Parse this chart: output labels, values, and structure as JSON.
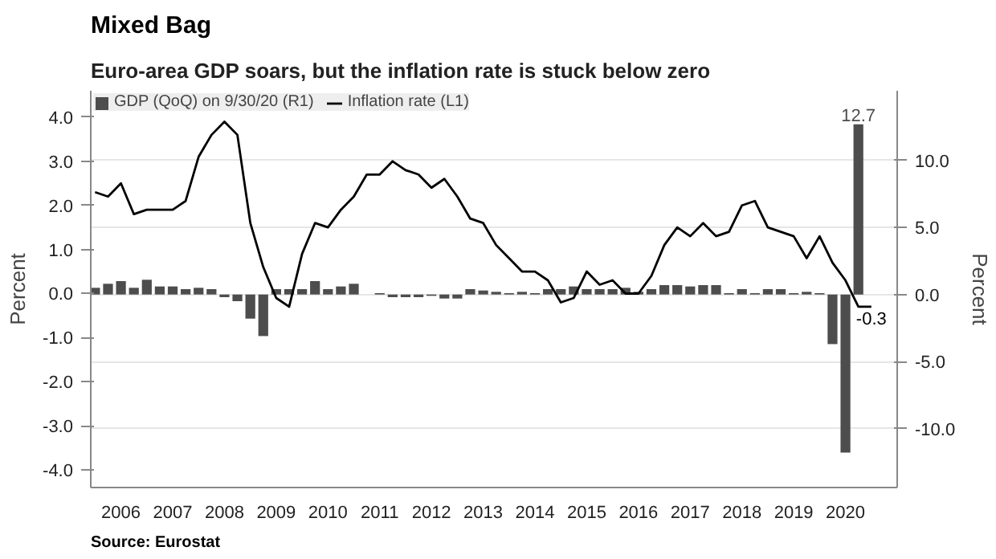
{
  "chart_data": {
    "type": "bar",
    "title": "Mixed Bag",
    "subtitle": "Euro-area GDP soars, but the inflation rate is stuck below zero",
    "ylabel": "Percent",
    "y2label": "Percent",
    "annotations": [
      "Source: Eurostat"
    ],
    "xlim": [
      "2005-11",
      "2021-06"
    ],
    "xticks": [
      {
        "value": "2006-06",
        "label": "2006"
      },
      {
        "value": "2007-06",
        "label": "2007"
      },
      {
        "value": "2008-06",
        "label": "2008"
      },
      {
        "value": "2009-06",
        "label": "2009"
      },
      {
        "value": "2010-06",
        "label": "2010"
      },
      {
        "value": "2011-06",
        "label": "2011"
      },
      {
        "value": "2012-06",
        "label": "2012"
      },
      {
        "value": "2013-06",
        "label": "2013"
      },
      {
        "value": "2014-06",
        "label": "2014"
      },
      {
        "value": "2015-06",
        "label": "2015"
      },
      {
        "value": "2016-06",
        "label": "2016"
      },
      {
        "value": "2017-06",
        "label": "2017"
      },
      {
        "value": "2018-06",
        "label": "2018"
      },
      {
        "value": "2019-06",
        "label": "2019"
      },
      {
        "value": "2020-06",
        "label": "2020"
      }
    ],
    "ylim": [
      -4.4,
      4.6
    ],
    "yticks": [
      {
        "value": -4,
        "label": "-4.0"
      },
      {
        "value": -3,
        "label": "-3.0"
      },
      {
        "value": -2,
        "label": "-2.0"
      },
      {
        "value": -1,
        "label": "-1.0"
      },
      {
        "value": 0,
        "label": "0.0"
      },
      {
        "value": 1,
        "label": "1.0"
      },
      {
        "value": 2,
        "label": "2.0"
      },
      {
        "value": 3,
        "label": "3.0"
      },
      {
        "value": 4,
        "label": "4.0"
      }
    ],
    "y2lim": [
      -14.4,
      15.2
    ],
    "y2ticks": [
      {
        "value": -10,
        "label": "-10.0"
      },
      {
        "value": -5,
        "label": "-5.0"
      },
      {
        "value": 0,
        "label": "0.0"
      },
      {
        "value": 5,
        "label": "5.0"
      },
      {
        "value": 10,
        "label": "10.0"
      }
    ],
    "grid": "y",
    "legend": "top left",
    "series": [
      {
        "name": "GDP (QoQ) on 9/30/20 (R1)",
        "axis": "y2",
        "color": "#4d4d4d",
        "x": [
          "2005-12",
          "2006-03",
          "2006-06",
          "2006-09",
          "2006-12",
          "2007-03",
          "2007-06",
          "2007-09",
          "2007-12",
          "2008-03",
          "2008-06",
          "2008-09",
          "2008-12",
          "2009-03",
          "2009-06",
          "2009-09",
          "2009-12",
          "2010-03",
          "2010-06",
          "2010-09",
          "2010-12",
          "2011-03",
          "2011-06",
          "2011-09",
          "2011-12",
          "2012-03",
          "2012-06",
          "2012-09",
          "2012-12",
          "2013-03",
          "2013-06",
          "2013-09",
          "2013-12",
          "2014-03",
          "2014-06",
          "2014-09",
          "2014-12",
          "2015-03",
          "2015-06",
          "2015-09",
          "2015-12",
          "2016-03",
          "2016-06",
          "2016-09",
          "2016-12",
          "2017-03",
          "2017-06",
          "2017-09",
          "2017-12",
          "2018-03",
          "2018-06",
          "2018-09",
          "2018-12",
          "2019-03",
          "2019-06",
          "2019-09",
          "2019-12",
          "2020-03",
          "2020-06",
          "2020-09"
        ],
        "values": [
          0.5,
          0.8,
          1.0,
          0.5,
          1.1,
          0.6,
          0.6,
          0.4,
          0.5,
          0.4,
          -0.2,
          -0.5,
          -1.8,
          -3.1,
          0.4,
          0.4,
          0.4,
          1.0,
          0.4,
          0.6,
          0.8,
          0.0,
          0.1,
          -0.2,
          -0.2,
          -0.2,
          -0.1,
          -0.3,
          -0.3,
          0.4,
          0.3,
          0.2,
          0.1,
          0.2,
          0.1,
          0.4,
          0.4,
          0.6,
          0.4,
          0.4,
          0.4,
          0.5,
          0.2,
          0.4,
          0.7,
          0.7,
          0.6,
          0.7,
          0.7,
          0.1,
          0.4,
          0.1,
          0.4,
          0.4,
          0.1,
          0.2,
          0.1,
          -3.7,
          -11.8,
          12.7
        ],
        "value_labels": [
          null,
          null,
          null,
          null,
          null,
          null,
          null,
          null,
          null,
          null,
          null,
          null,
          null,
          null,
          null,
          null,
          null,
          null,
          null,
          null,
          null,
          null,
          null,
          null,
          null,
          null,
          null,
          null,
          null,
          null,
          null,
          null,
          null,
          null,
          null,
          null,
          null,
          null,
          null,
          null,
          null,
          null,
          null,
          null,
          null,
          null,
          null,
          null,
          null,
          null,
          null,
          null,
          null,
          null,
          null,
          null,
          null,
          null,
          null,
          "12.7"
        ]
      },
      {
        "name": "Inflation rate (L1)",
        "type": "line",
        "color": "#000000",
        "x": [
          "2005-12",
          "2006-03",
          "2006-06",
          "2006-09",
          "2006-12",
          "2007-03",
          "2007-06",
          "2007-09",
          "2007-12",
          "2008-03",
          "2008-06",
          "2008-09",
          "2008-12",
          "2009-03",
          "2009-06",
          "2009-09",
          "2009-12",
          "2010-03",
          "2010-06",
          "2010-09",
          "2010-12",
          "2011-03",
          "2011-06",
          "2011-09",
          "2011-12",
          "2012-03",
          "2012-06",
          "2012-09",
          "2012-12",
          "2013-03",
          "2013-06",
          "2013-09",
          "2013-12",
          "2014-03",
          "2014-06",
          "2014-09",
          "2014-12",
          "2015-03",
          "2015-06",
          "2015-09",
          "2015-12",
          "2016-03",
          "2016-06",
          "2016-09",
          "2016-12",
          "2017-03",
          "2017-06",
          "2017-09",
          "2017-12",
          "2018-03",
          "2018-06",
          "2018-09",
          "2018-12",
          "2019-03",
          "2019-06",
          "2019-09",
          "2019-12",
          "2020-03",
          "2020-06",
          "2020-09",
          "2020-12"
        ],
        "values": [
          2.3,
          2.2,
          2.5,
          1.8,
          1.9,
          1.9,
          1.9,
          2.1,
          3.1,
          3.6,
          3.9,
          3.6,
          1.6,
          0.6,
          -0.1,
          -0.3,
          0.9,
          1.6,
          1.5,
          1.9,
          2.2,
          2.7,
          2.7,
          3.0,
          2.8,
          2.7,
          2.4,
          2.6,
          2.2,
          1.7,
          1.6,
          1.1,
          0.8,
          0.5,
          0.5,
          0.3,
          -0.2,
          -0.1,
          0.5,
          0.2,
          0.3,
          0.0,
          0.0,
          0.4,
          1.1,
          1.5,
          1.3,
          1.6,
          1.3,
          1.4,
          2.0,
          2.1,
          1.5,
          1.4,
          1.3,
          0.8,
          1.3,
          0.7,
          0.3,
          -0.3,
          -0.3
        ],
        "value_labels": [
          null,
          null,
          null,
          null,
          null,
          null,
          null,
          null,
          null,
          null,
          null,
          null,
          null,
          null,
          null,
          null,
          null,
          null,
          null,
          null,
          null,
          null,
          null,
          null,
          null,
          null,
          null,
          null,
          null,
          null,
          null,
          null,
          null,
          null,
          null,
          null,
          null,
          null,
          null,
          null,
          null,
          null,
          null,
          null,
          null,
          null,
          null,
          null,
          null,
          null,
          null,
          null,
          null,
          null,
          null,
          null,
          null,
          null,
          null,
          null,
          "-0.3"
        ]
      }
    ]
  }
}
